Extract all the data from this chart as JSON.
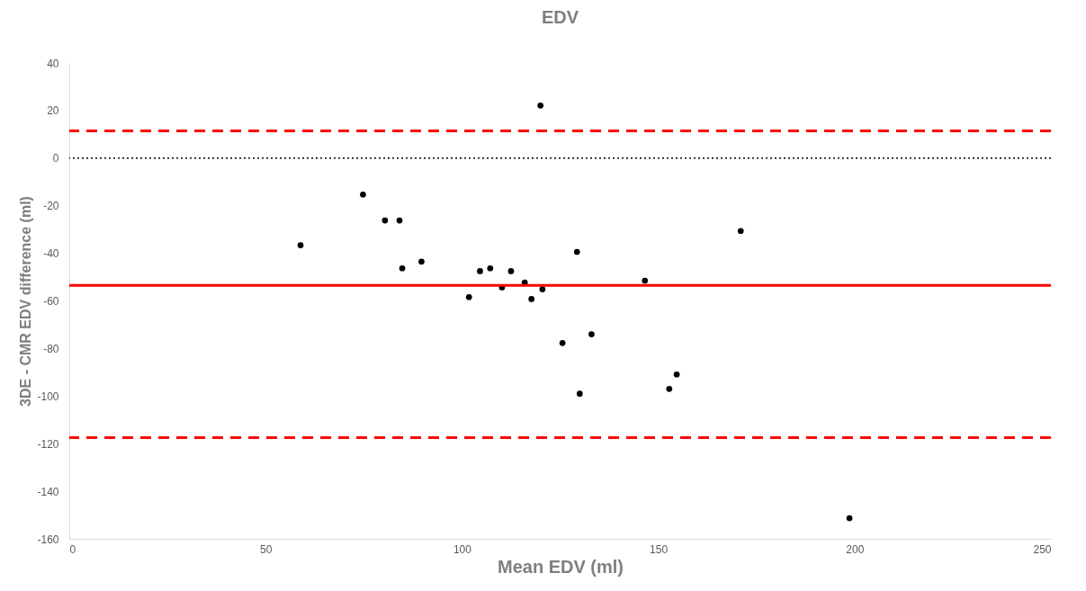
{
  "chart_data": {
    "type": "scatter",
    "title": "EDV",
    "xlabel": "Mean EDV (ml)",
    "ylabel": "3DE - CMR EDV difference (ml)",
    "xlim": [
      0,
      250
    ],
    "xticks": [
      0,
      50,
      100,
      150,
      200,
      250
    ],
    "ylim": [
      -160,
      40
    ],
    "yticks": [
      -160,
      -140,
      -120,
      -100,
      -80,
      -60,
      -40,
      -20,
      0,
      20,
      40
    ],
    "marker": "circle",
    "series": [
      {
        "color": "#000000",
        "x": [
          58.9,
          74.8,
          80.4,
          84.1,
          84.8,
          89.7,
          101.8,
          104.6,
          107.2,
          110.2,
          112.5,
          116.0,
          117.7,
          120.0,
          120.5,
          125.6,
          129.3,
          130.0,
          133.0,
          146.6,
          152.8,
          154.7,
          171.0,
          198.7
        ],
        "values": [
          -36.6,
          -15.3,
          -26.2,
          -26.2,
          -46.3,
          -43.5,
          -58.4,
          -47.5,
          -46.3,
          -54.3,
          -47.5,
          -52.3,
          -59.2,
          22.1,
          -55.1,
          -77.7,
          -39.4,
          -99.0,
          -74.0,
          -51.5,
          -97.0,
          -90.9,
          -30.6,
          -151.3
        ]
      }
    ],
    "ref_lines": [
      {
        "axis": "y",
        "value": 11.5,
        "color": "#ff0000",
        "line_style": "dashed"
      },
      {
        "axis": "y",
        "value": 0,
        "color": "#000000",
        "line_style": "dotted"
      },
      {
        "axis": "y",
        "value": -53.5,
        "color": "#ff0000",
        "line_style": "solid"
      },
      {
        "axis": "y",
        "value": -117.5,
        "color": "#ff0000",
        "line_style": "dashed"
      }
    ]
  }
}
